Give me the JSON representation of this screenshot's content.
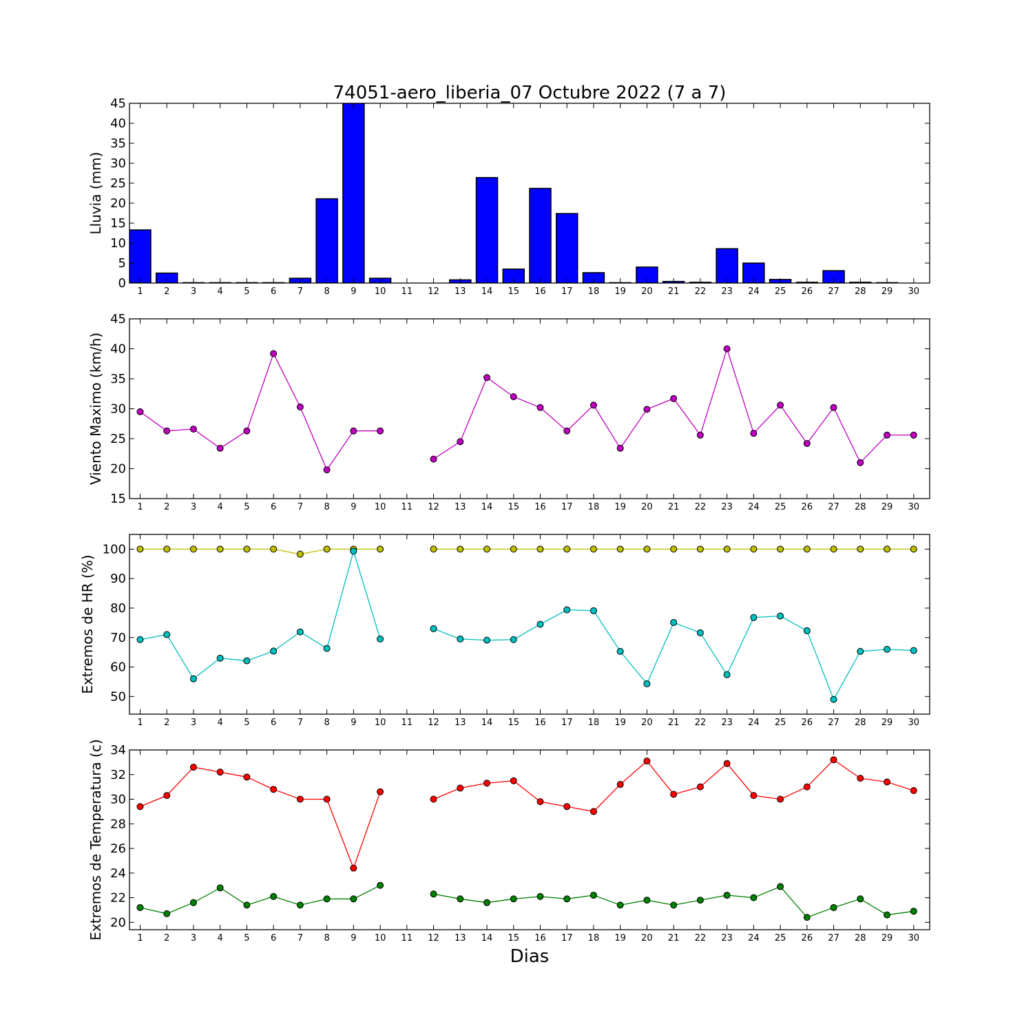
{
  "figure": {
    "title": "74051-aero_liberia_07 Octubre 2022  (7 a 7)",
    "xlabel": "Dias"
  },
  "chart_data": [
    {
      "type": "bar",
      "ylabel": "Lluvia (mm)",
      "ylim": [
        0,
        45
      ],
      "yticks": [
        0,
        5,
        10,
        15,
        20,
        25,
        30,
        35,
        40,
        45
      ],
      "x": [
        1,
        2,
        3,
        4,
        5,
        6,
        7,
        8,
        9,
        10,
        11,
        12,
        13,
        14,
        15,
        16,
        17,
        18,
        19,
        20,
        21,
        22,
        23,
        24,
        25,
        26,
        27,
        28,
        29,
        30
      ],
      "xlim": [
        0.6,
        30.6
      ],
      "series": [
        {
          "color": "#0000ff",
          "values": [
            13.3,
            2.5,
            0.1,
            0.1,
            0.1,
            0.1,
            1.2,
            21.1,
            45.0,
            1.2,
            0,
            0,
            0.8,
            26.4,
            3.5,
            23.7,
            17.4,
            2.6,
            0.1,
            4.0,
            0.4,
            0.2,
            8.6,
            5.0,
            0.9,
            0.2,
            3.1,
            0.2,
            0.1,
            0
          ]
        }
      ]
    },
    {
      "type": "line",
      "ylabel": "Viento Maximo (km/h)",
      "ylim": [
        15,
        45
      ],
      "yticks": [
        15,
        20,
        25,
        30,
        35,
        40,
        45
      ],
      "x": [
        1,
        2,
        3,
        4,
        5,
        6,
        7,
        8,
        9,
        10,
        11,
        12,
        13,
        14,
        15,
        16,
        17,
        18,
        19,
        20,
        21,
        22,
        23,
        24,
        25,
        26,
        27,
        28,
        29,
        30
      ],
      "xlim": [
        0.6,
        30.6
      ],
      "series": [
        {
          "color": "#bf00bf",
          "values": [
            29.5,
            26.3,
            26.6,
            23.4,
            26.3,
            39.2,
            30.3,
            19.8,
            26.3,
            26.3,
            null,
            21.6,
            24.5,
            35.2,
            32.0,
            30.2,
            26.3,
            30.6,
            23.4,
            29.9,
            31.7,
            25.6,
            40.0,
            25.9,
            30.6,
            24.2,
            30.2,
            21.0,
            25.6,
            25.6
          ]
        }
      ]
    },
    {
      "type": "line",
      "ylabel": "Extremos de HR (%)",
      "ylim": [
        44,
        105
      ],
      "yticks": [
        50,
        60,
        70,
        80,
        90,
        100
      ],
      "x": [
        1,
        2,
        3,
        4,
        5,
        6,
        7,
        8,
        9,
        10,
        11,
        12,
        13,
        14,
        15,
        16,
        17,
        18,
        19,
        20,
        21,
        22,
        23,
        24,
        25,
        26,
        27,
        28,
        29,
        30
      ],
      "xlim": [
        0.6,
        30.6
      ],
      "series": [
        {
          "color": "#bfbf00",
          "values": [
            100,
            100,
            100,
            100,
            100,
            100,
            98.3,
            100,
            100,
            100,
            null,
            100,
            100,
            100,
            100,
            100,
            100,
            100,
            100,
            100,
            100,
            100,
            100,
            100,
            100,
            100,
            100,
            100,
            100,
            100
          ]
        },
        {
          "color": "#00bfbf",
          "values": [
            69.3,
            71.0,
            56.0,
            63.0,
            62.1,
            65.4,
            71.9,
            66.3,
            99.3,
            69.5,
            null,
            73.0,
            69.5,
            69.1,
            69.3,
            74.5,
            79.4,
            79.1,
            65.3,
            54.3,
            75.1,
            71.6,
            57.4,
            76.8,
            77.3,
            72.3,
            49.0,
            65.3,
            66.0,
            65.6
          ]
        }
      ]
    },
    {
      "type": "line",
      "ylabel": "Extremos de Temperatura (c)",
      "ylim": [
        19.4,
        34
      ],
      "yticks": [
        20,
        22,
        24,
        26,
        28,
        30,
        32,
        34
      ],
      "x": [
        1,
        2,
        3,
        4,
        5,
        6,
        7,
        8,
        9,
        10,
        11,
        12,
        13,
        14,
        15,
        16,
        17,
        18,
        19,
        20,
        21,
        22,
        23,
        24,
        25,
        26,
        27,
        28,
        29,
        30
      ],
      "xlim": [
        0.6,
        30.6
      ],
      "series": [
        {
          "color": "#ff0000",
          "values": [
            29.4,
            30.3,
            32.6,
            32.2,
            31.8,
            30.8,
            30.0,
            30.0,
            24.4,
            30.6,
            null,
            30.0,
            30.9,
            31.3,
            31.5,
            29.8,
            29.4,
            29.0,
            31.2,
            33.1,
            30.4,
            31.0,
            32.9,
            30.3,
            30.0,
            31.0,
            33.2,
            31.7,
            31.4,
            30.7
          ]
        },
        {
          "color": "#008000",
          "values": [
            21.2,
            20.7,
            21.6,
            22.8,
            21.4,
            22.1,
            21.4,
            21.9,
            21.9,
            23.0,
            null,
            22.3,
            21.9,
            21.6,
            21.9,
            22.1,
            21.9,
            22.2,
            21.4,
            21.8,
            21.4,
            21.8,
            22.2,
            22.0,
            22.9,
            20.4,
            21.2,
            21.9,
            20.6,
            20.9
          ]
        }
      ]
    }
  ]
}
